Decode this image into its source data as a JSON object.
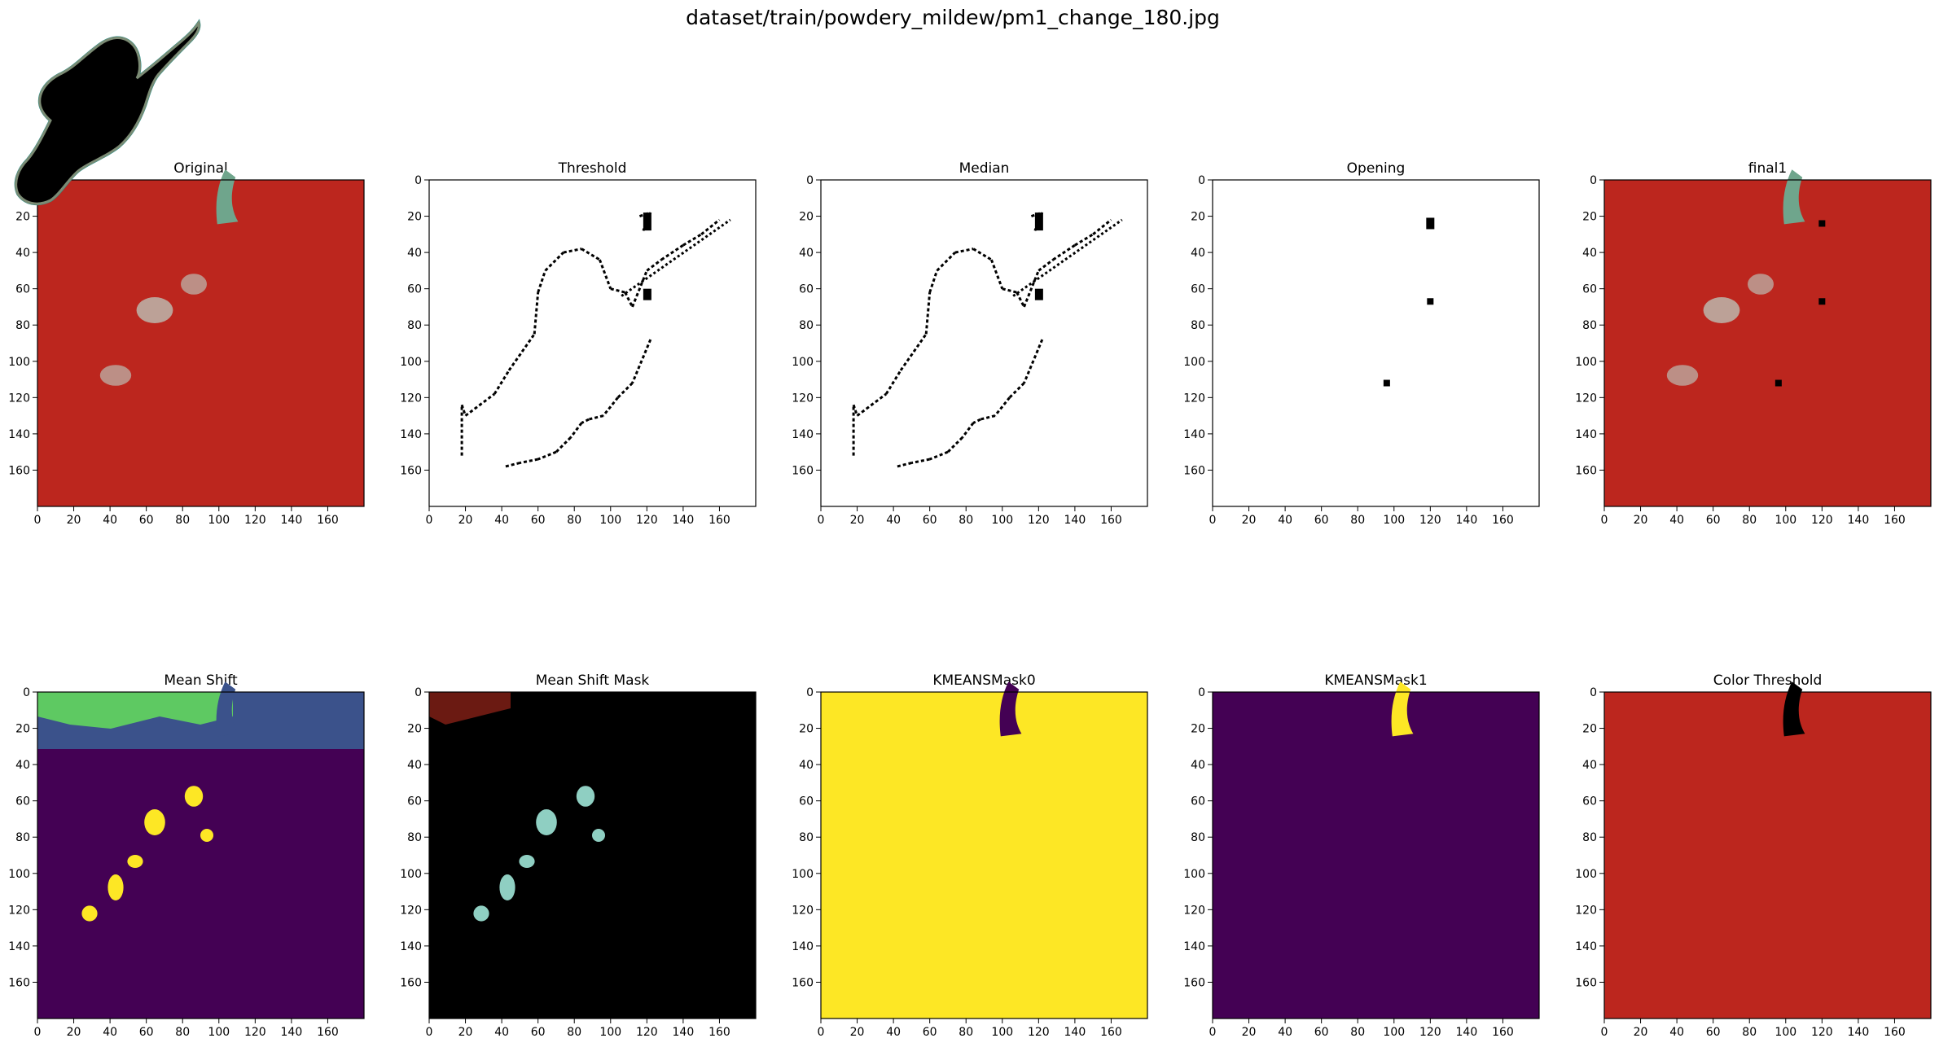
{
  "figure": {
    "suptitle": "dataset/train/powdery_mildew/pm1_change_180.jpg"
  },
  "axes_ticks": {
    "x": [
      "0",
      "20",
      "40",
      "60",
      "80",
      "100",
      "120",
      "140",
      "160"
    ],
    "y": [
      "0",
      "20",
      "40",
      "60",
      "80",
      "100",
      "120",
      "140",
      "160"
    ],
    "xlim": [
      0,
      180
    ],
    "ylim": [
      0,
      180
    ]
  },
  "panels": [
    {
      "id": "original",
      "title": "Original",
      "kind": "leaf-photo",
      "colors": {
        "bg": "#c62a20",
        "leaf": "#6fa58c",
        "light": "#bcd5cb"
      }
    },
    {
      "id": "threshold",
      "title": "Threshold",
      "kind": "binary-edges",
      "colors": {
        "bg": "#ffffff",
        "fg": "#000000"
      }
    },
    {
      "id": "median",
      "title": "Median",
      "kind": "binary-edges",
      "colors": {
        "bg": "#ffffff",
        "fg": "#000000"
      }
    },
    {
      "id": "opening",
      "title": "Opening",
      "kind": "binary-dots",
      "colors": {
        "bg": "#ffffff",
        "fg": "#000000"
      }
    },
    {
      "id": "final1",
      "title": "final1",
      "kind": "leaf-photo-dots",
      "colors": {
        "bg": "#c62a20",
        "leaf": "#6fa58c",
        "light": "#bcd5cb"
      }
    },
    {
      "id": "mean-shift",
      "title": "Mean Shift",
      "kind": "segments",
      "colors": {
        "bg": "#440154",
        "band": "#3b528b",
        "edge": "#21918c",
        "top": "#5ec962",
        "spot": "#fde725"
      }
    },
    {
      "id": "mean-shift-mask",
      "title": "Mean Shift Mask",
      "kind": "mask-color",
      "colors": {
        "bg": "#000000",
        "top": "#6b1a12",
        "edge": "#6f7f6a",
        "spot": "#8fcfc2"
      }
    },
    {
      "id": "kmeans-mask0",
      "title": "KMEANSMask0",
      "kind": "mask-inverse",
      "colors": {
        "bg": "#fde725",
        "fg": "#440154"
      }
    },
    {
      "id": "kmeans-mask1",
      "title": "KMEANSMask1",
      "kind": "mask",
      "colors": {
        "bg": "#440154",
        "fg": "#fde725"
      }
    },
    {
      "id": "color-threshold",
      "title": "Color Threshold",
      "kind": "leaf-cutout",
      "colors": {
        "bg": "#c62a20",
        "fg": "#000000",
        "edge": "#7b8b74"
      }
    }
  ]
}
